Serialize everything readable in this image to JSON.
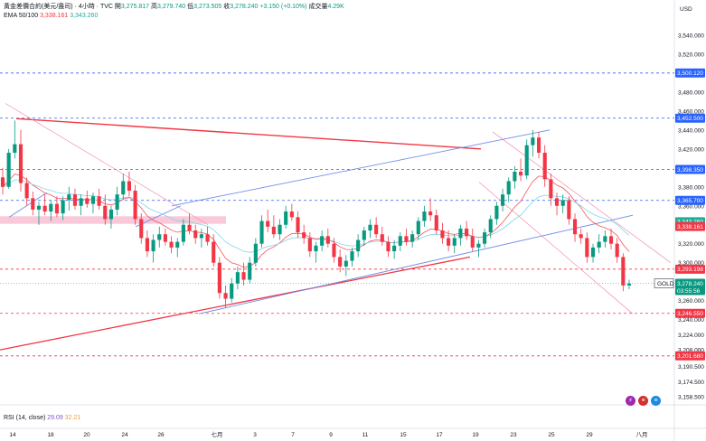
{
  "legend": {
    "symbol": "黃金差價合約(美元/盎司) · 4小時 · TVC",
    "open_label": "開",
    "open": "3,275.817",
    "high_label": "高",
    "high": "3,279.740",
    "low_label": "低",
    "low": "3,273.505",
    "close_label": "收",
    "close": "3,278.240",
    "change": "+3.150 (+0.10%)",
    "volume_label": "成交量",
    "volume": "4.29K",
    "ema_title": "EMA 50/100",
    "ema50": "3,338.161",
    "ema100": "3,343.260"
  },
  "rsi": {
    "title": "RSI (14, close)",
    "value": "29.09",
    "ma": "32.21"
  },
  "icons": [
    "lightning-icon",
    "us-flag-icon",
    "us-flag-icon"
  ],
  "colors": {
    "up": "#089981",
    "down": "#f23645",
    "ema50": "#f7525f",
    "ema100": "#7fd6ea",
    "channel_blue": "#6f8ee8",
    "trend_red": "#f23645"
  },
  "chart_data": {
    "type": "candlestick",
    "currency": "USD",
    "y_range": [
      3150,
      3560
    ],
    "y_ticks": [
      "3,540.000",
      "3,520.000",
      "3,480.000",
      "3,460.000",
      "3,440.000",
      "3,420.000",
      "3,380.000",
      "3,360.000",
      "3,320.000",
      "3,300.000",
      "3,260.000",
      "3,240.000",
      "3,224.000",
      "3,208.000",
      "3,190.500",
      "3,174.500",
      "3,158.500"
    ],
    "y_tick_values": [
      3540,
      3520,
      3480,
      3460,
      3440,
      3420,
      3380,
      3360,
      3320,
      3300,
      3260,
      3240,
      3224,
      3208,
      3190.5,
      3174.5,
      3158.5
    ],
    "x_labels": [
      "14",
      "18",
      "20",
      "24",
      "26",
      "七月",
      "3",
      "7",
      "9",
      "11",
      "15",
      "17",
      "19",
      "23",
      "25",
      "29",
      "八月"
    ],
    "price_tags": [
      {
        "label": "3,500.120",
        "value": 3500.12,
        "color": "#2962ff"
      },
      {
        "label": "3,452.500",
        "value": 3452.5,
        "color": "#2962ff"
      },
      {
        "label": "3,398.350",
        "value": 3398.35,
        "color": "#2962ff"
      },
      {
        "label": "3,365.700",
        "value": 3365.7,
        "color": "#2962ff"
      },
      {
        "label": "3,343.260",
        "value": 3343.26,
        "color": "#22ab94"
      },
      {
        "label": "3,338.161",
        "value": 3338.161,
        "color": "#f23645"
      },
      {
        "label": "3,293.198",
        "value": 3293.198,
        "color": "#f23645"
      },
      {
        "label": "3,246.550",
        "value": 3246.55,
        "color": "#f23645"
      },
      {
        "label": "3,201.680",
        "value": 3201.68,
        "color": "#f23645"
      }
    ],
    "current_price": {
      "symbol": "GOLD",
      "label": "3,278.240",
      "value": 3278.24,
      "countdown": "03:55:56",
      "color": "#089981"
    },
    "candles": [
      [
        3390,
        3400,
        3372,
        3380
      ],
      [
        3380,
        3420,
        3378,
        3416
      ],
      [
        3416,
        3450,
        3410,
        3425
      ],
      [
        3425,
        3440,
        3375,
        3384
      ],
      [
        3384,
        3390,
        3360,
        3368
      ],
      [
        3368,
        3375,
        3350,
        3356
      ],
      [
        3356,
        3364,
        3340,
        3360
      ],
      [
        3360,
        3372,
        3350,
        3354
      ],
      [
        3354,
        3366,
        3344,
        3362
      ],
      [
        3362,
        3370,
        3348,
        3352
      ],
      [
        3352,
        3370,
        3345,
        3366
      ],
      [
        3366,
        3380,
        3355,
        3372
      ],
      [
        3372,
        3378,
        3356,
        3360
      ],
      [
        3360,
        3372,
        3350,
        3368
      ],
      [
        3368,
        3376,
        3358,
        3362
      ],
      [
        3362,
        3374,
        3352,
        3370
      ],
      [
        3370,
        3378,
        3356,
        3360
      ],
      [
        3360,
        3372,
        3340,
        3346
      ],
      [
        3346,
        3360,
        3336,
        3356
      ],
      [
        3356,
        3380,
        3350,
        3372
      ],
      [
        3372,
        3394,
        3366,
        3386
      ],
      [
        3386,
        3396,
        3370,
        3376
      ],
      [
        3376,
        3382,
        3340,
        3346
      ],
      [
        3346,
        3352,
        3320,
        3326
      ],
      [
        3326,
        3334,
        3306,
        3312
      ],
      [
        3312,
        3330,
        3300,
        3324
      ],
      [
        3324,
        3338,
        3316,
        3330
      ],
      [
        3330,
        3336,
        3318,
        3322
      ],
      [
        3322,
        3328,
        3310,
        3316
      ],
      [
        3316,
        3326,
        3306,
        3322
      ],
      [
        3322,
        3346,
        3318,
        3340
      ],
      [
        3340,
        3352,
        3330,
        3334
      ],
      [
        3334,
        3340,
        3320,
        3326
      ],
      [
        3326,
        3336,
        3316,
        3330
      ],
      [
        3330,
        3338,
        3318,
        3322
      ],
      [
        3322,
        3330,
        3296,
        3300
      ],
      [
        3300,
        3306,
        3262,
        3268
      ],
      [
        3268,
        3276,
        3252,
        3262
      ],
      [
        3262,
        3284,
        3258,
        3278
      ],
      [
        3278,
        3296,
        3272,
        3290
      ],
      [
        3290,
        3300,
        3276,
        3282
      ],
      [
        3282,
        3306,
        3278,
        3300
      ],
      [
        3300,
        3326,
        3296,
        3320
      ],
      [
        3320,
        3350,
        3316,
        3344
      ],
      [
        3344,
        3356,
        3332,
        3338
      ],
      [
        3338,
        3350,
        3326,
        3330
      ],
      [
        3330,
        3346,
        3324,
        3340
      ],
      [
        3340,
        3360,
        3336,
        3354
      ],
      [
        3354,
        3362,
        3344,
        3348
      ],
      [
        3348,
        3354,
        3326,
        3332
      ],
      [
        3332,
        3340,
        3320,
        3326
      ],
      [
        3326,
        3332,
        3306,
        3312
      ],
      [
        3312,
        3322,
        3300,
        3318
      ],
      [
        3318,
        3334,
        3312,
        3328
      ],
      [
        3328,
        3336,
        3316,
        3320
      ],
      [
        3320,
        3326,
        3300,
        3306
      ],
      [
        3306,
        3314,
        3290,
        3296
      ],
      [
        3296,
        3308,
        3286,
        3302
      ],
      [
        3302,
        3316,
        3296,
        3312
      ],
      [
        3312,
        3330,
        3306,
        3324
      ],
      [
        3324,
        3338,
        3318,
        3334
      ],
      [
        3334,
        3346,
        3326,
        3340
      ],
      [
        3340,
        3348,
        3326,
        3330
      ],
      [
        3330,
        3338,
        3318,
        3322
      ],
      [
        3322,
        3328,
        3306,
        3312
      ],
      [
        3312,
        3324,
        3304,
        3318
      ],
      [
        3318,
        3332,
        3312,
        3328
      ],
      [
        3328,
        3336,
        3318,
        3322
      ],
      [
        3322,
        3334,
        3316,
        3330
      ],
      [
        3330,
        3348,
        3324,
        3344
      ],
      [
        3344,
        3360,
        3338,
        3354
      ],
      [
        3354,
        3368,
        3344,
        3350
      ],
      [
        3350,
        3356,
        3330,
        3334
      ],
      [
        3334,
        3342,
        3320,
        3326
      ],
      [
        3326,
        3334,
        3312,
        3318
      ],
      [
        3318,
        3330,
        3310,
        3326
      ],
      [
        3326,
        3340,
        3318,
        3336
      ],
      [
        3336,
        3344,
        3324,
        3328
      ],
      [
        3328,
        3336,
        3312,
        3316
      ],
      [
        3316,
        3324,
        3306,
        3320
      ],
      [
        3320,
        3336,
        3316,
        3332
      ],
      [
        3332,
        3350,
        3326,
        3346
      ],
      [
        3346,
        3364,
        3340,
        3360
      ],
      [
        3360,
        3378,
        3354,
        3372
      ],
      [
        3372,
        3390,
        3364,
        3386
      ],
      [
        3386,
        3402,
        3378,
        3396
      ],
      [
        3396,
        3410,
        3386,
        3392
      ],
      [
        3392,
        3430,
        3388,
        3424
      ],
      [
        3424,
        3440,
        3412,
        3432
      ],
      [
        3432,
        3438,
        3410,
        3416
      ],
      [
        3416,
        3424,
        3380,
        3388
      ],
      [
        3388,
        3394,
        3360,
        3368
      ],
      [
        3368,
        3374,
        3350,
        3360
      ],
      [
        3360,
        3372,
        3352,
        3366
      ],
      [
        3366,
        3370,
        3340,
        3346
      ],
      [
        3346,
        3352,
        3322,
        3330
      ],
      [
        3330,
        3336,
        3320,
        3326
      ],
      [
        3326,
        3332,
        3300,
        3306
      ],
      [
        3306,
        3320,
        3300,
        3316
      ],
      [
        3316,
        3330,
        3310,
        3322
      ],
      [
        3322,
        3334,
        3316,
        3328
      ],
      [
        3328,
        3336,
        3314,
        3320
      ],
      [
        3320,
        3326,
        3300,
        3306
      ],
      [
        3306,
        3310,
        3270,
        3276
      ],
      [
        3276,
        3282,
        3272,
        3278
      ]
    ]
  }
}
